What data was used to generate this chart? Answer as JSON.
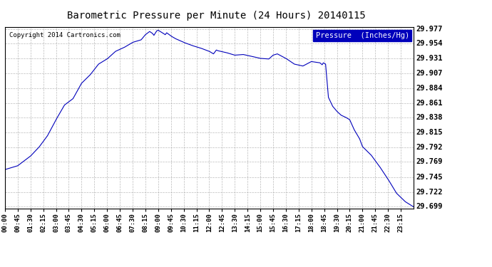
{
  "title": "Barometric Pressure per Minute (24 Hours) 20140115",
  "copyright": "Copyright 2014 Cartronics.com",
  "legend_label": "Pressure  (Inches/Hg)",
  "background_color": "#ffffff",
  "line_color": "#0000bb",
  "grid_color": "#aaaaaa",
  "yticks": [
    29.699,
    29.722,
    29.745,
    29.769,
    29.792,
    29.815,
    29.838,
    29.861,
    29.884,
    29.907,
    29.931,
    29.954,
    29.977
  ],
  "xtick_labels": [
    "00:00",
    "00:45",
    "01:30",
    "02:15",
    "03:00",
    "03:45",
    "04:30",
    "05:15",
    "06:00",
    "06:45",
    "07:30",
    "08:15",
    "09:00",
    "09:45",
    "10:30",
    "11:15",
    "12:00",
    "12:45",
    "13:30",
    "14:15",
    "15:00",
    "15:45",
    "16:30",
    "17:15",
    "18:00",
    "18:45",
    "19:30",
    "20:15",
    "21:00",
    "21:45",
    "22:30",
    "23:15"
  ],
  "ylim": [
    29.6965,
    29.9805
  ],
  "xlim": [
    0,
    1439
  ],
  "keypoints_t": [
    0,
    45,
    60,
    90,
    120,
    150,
    180,
    210,
    240,
    270,
    300,
    330,
    360,
    390,
    420,
    450,
    480,
    495,
    510,
    520,
    525,
    535,
    540,
    555,
    565,
    570,
    585,
    600,
    630,
    660,
    690,
    720,
    735,
    745,
    750,
    780,
    810,
    840,
    870,
    900,
    930,
    945,
    960,
    990,
    1020,
    1050,
    1080,
    1110,
    1118,
    1122,
    1130,
    1140,
    1155,
    1170,
    1185,
    1200,
    1215,
    1230,
    1250,
    1260,
    1290,
    1320,
    1350,
    1380,
    1410,
    1439
  ],
  "keypoints_p": [
    29.757,
    29.763,
    29.768,
    29.778,
    29.792,
    29.81,
    29.835,
    29.858,
    29.868,
    29.892,
    29.905,
    29.922,
    29.93,
    29.942,
    29.948,
    29.956,
    29.96,
    29.968,
    29.973,
    29.97,
    29.967,
    29.974,
    29.975,
    29.971,
    29.968,
    29.971,
    29.966,
    29.962,
    29.956,
    29.951,
    29.947,
    29.942,
    29.938,
    29.944,
    29.943,
    29.94,
    29.936,
    29.937,
    29.934,
    29.931,
    29.93,
    29.936,
    29.938,
    29.931,
    29.922,
    29.919,
    29.926,
    29.924,
    29.921,
    29.924,
    29.922,
    29.87,
    29.856,
    29.848,
    29.842,
    29.839,
    29.835,
    29.82,
    29.805,
    29.793,
    29.78,
    29.762,
    29.742,
    29.72,
    29.707,
    29.699
  ]
}
